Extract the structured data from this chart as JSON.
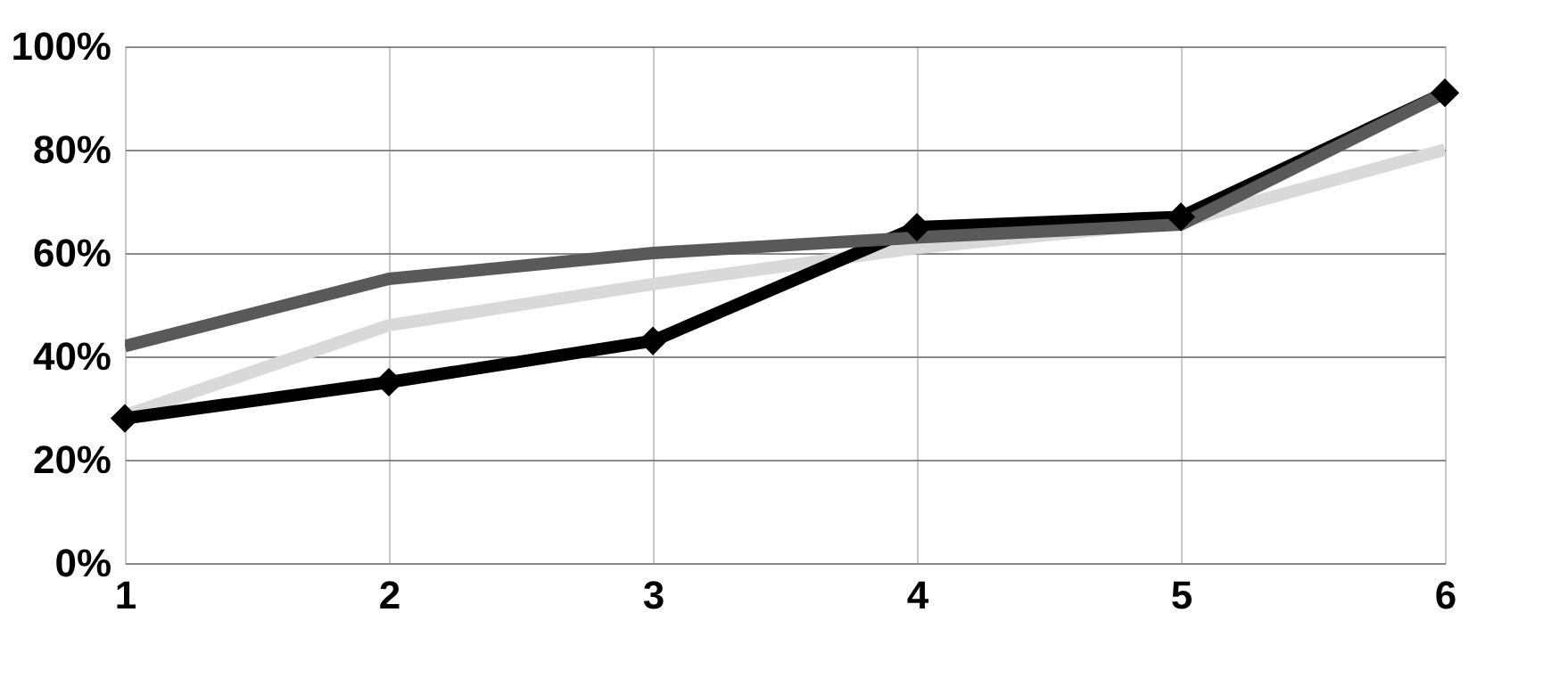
{
  "chart_data": {
    "type": "line",
    "x": [
      1,
      2,
      3,
      4,
      5,
      6
    ],
    "series": [
      {
        "color": "#d9d9d9",
        "values": [
          28.6,
          46,
          54,
          61,
          66,
          80
        ],
        "marker": "none"
      },
      {
        "color": "#000000",
        "values": [
          28,
          35,
          43,
          65,
          67,
          91
        ],
        "marker": "diamond"
      },
      {
        "color": "#595959",
        "values": [
          42,
          55,
          60,
          63,
          65.5,
          91
        ],
        "marker": "none"
      }
    ],
    "xlim": [
      1,
      6
    ],
    "xticks": [
      1,
      2,
      3,
      4,
      5,
      6
    ],
    "ylim": [
      0,
      100
    ],
    "yticks": [
      {
        "value": 0,
        "label": "0%"
      },
      {
        "value": 20,
        "label": "20%"
      },
      {
        "value": 40,
        "label": "40%"
      },
      {
        "value": 60,
        "label": "60%"
      },
      {
        "value": 80,
        "label": "80%"
      },
      {
        "value": 100,
        "label": "100%"
      }
    ],
    "grid": true,
    "line_style": "solid"
  }
}
